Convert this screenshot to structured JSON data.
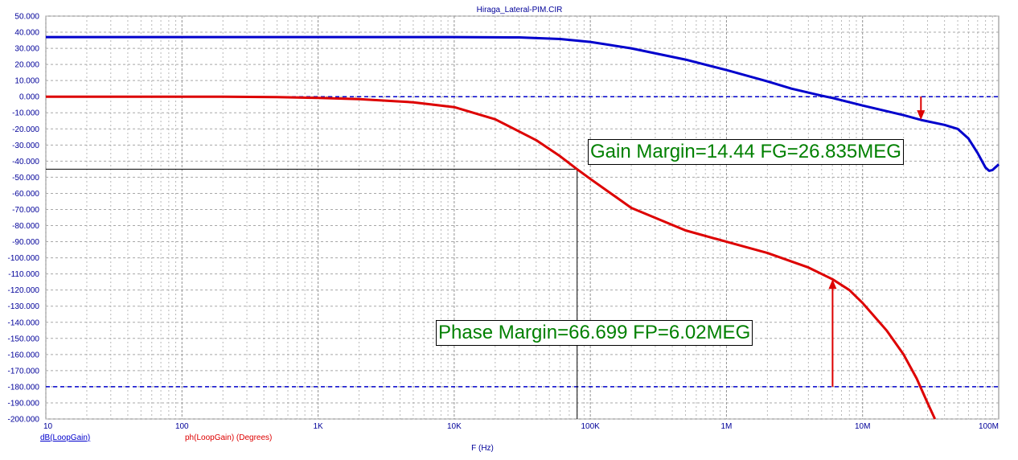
{
  "chart_data": {
    "type": "line",
    "title": "Hiraga_Lateral-PIM.CIR",
    "xlabel": "F (Hz)",
    "x_scale": "log",
    "xlim": [
      10,
      100000000
    ],
    "ylim": [
      -200,
      50
    ],
    "x_ticks": [
      {
        "value": 10,
        "label": "10"
      },
      {
        "value": 100,
        "label": "100"
      },
      {
        "value": 1000,
        "label": "1K"
      },
      {
        "value": 10000,
        "label": "10K"
      },
      {
        "value": 100000,
        "label": "100K"
      },
      {
        "value": 1000000,
        "label": "1M"
      },
      {
        "value": 10000000,
        "label": "10M"
      },
      {
        "value": 100000000,
        "label": "100M"
      }
    ],
    "y_ticks": [
      "50.000",
      "40.000",
      "30.000",
      "20.000",
      "10.000",
      "0.000",
      "-10.000",
      "-20.000",
      "-30.000",
      "-40.000",
      "-50.000",
      "-60.000",
      "-70.000",
      "-80.000",
      "-90.000",
      "-100.000",
      "-110.000",
      "-120.000",
      "-130.000",
      "-140.000",
      "-150.000",
      "-160.000",
      "-170.000",
      "-180.000",
      "-190.000",
      "-200.000"
    ],
    "grid": true,
    "series": [
      {
        "name": "dB(LoopGain)",
        "color": "#0000cc",
        "x": [
          10,
          100,
          1000,
          10000,
          30000,
          60000,
          100000,
          200000,
          500000,
          1000000,
          2000000,
          3000000,
          5000000,
          6000000,
          10000000,
          20000000,
          26835000,
          40000000,
          50000000,
          60000000,
          70000000,
          80000000,
          85000000,
          90000000,
          100000000
        ],
        "y": [
          37,
          37,
          37,
          37,
          36.8,
          35.8,
          34,
          30,
          23,
          16.5,
          9.5,
          5,
          0.6,
          -0.8,
          -5.5,
          -11.5,
          -14.44,
          -17.5,
          -20,
          -26,
          -35,
          -44,
          -46,
          -45.5,
          -42
        ]
      },
      {
        "name": "ph(LoopGain) (Degrees)",
        "color": "#dd0000",
        "x": [
          10,
          100,
          200,
          500,
          1000,
          2000,
          5000,
          10000,
          20000,
          40000,
          60000,
          80000,
          100000,
          200000,
          500000,
          1000000,
          2000000,
          4000000,
          6020000,
          8000000,
          10000000,
          15000000,
          20000000,
          25000000,
          30000000,
          34000000
        ],
        "y": [
          0,
          0,
          0,
          -0.3,
          -0.8,
          -1.5,
          -3.5,
          -6.5,
          -14,
          -27,
          -37,
          -45,
          -51,
          -69,
          -83,
          -90,
          -97,
          -106,
          -113.3,
          -120,
          -128,
          -145,
          -160,
          -175,
          -190,
          -200
        ]
      }
    ],
    "reference_lines": [
      0,
      -180
    ],
    "markers": {
      "phase_crossing": {
        "x": 80000,
        "y": -45
      },
      "gain_margin_arrow": {
        "x": 26835000,
        "y_from": 0,
        "y_to": -14.44
      },
      "phase_margin_arrow": {
        "x": 6020000,
        "y_from": -180,
        "y_to": -113.3
      }
    },
    "annotations": {
      "gain_margin": "Gain Margin=14.44 FG=26.835MEG",
      "phase_margin": "Phase Margin=66.699 FP=6.02MEG"
    },
    "legend": [
      {
        "label": "dB(LoopGain)",
        "color": "#0000cc"
      },
      {
        "label": "ph(LoopGain) (Degrees)",
        "color": "#dd0000"
      }
    ]
  }
}
